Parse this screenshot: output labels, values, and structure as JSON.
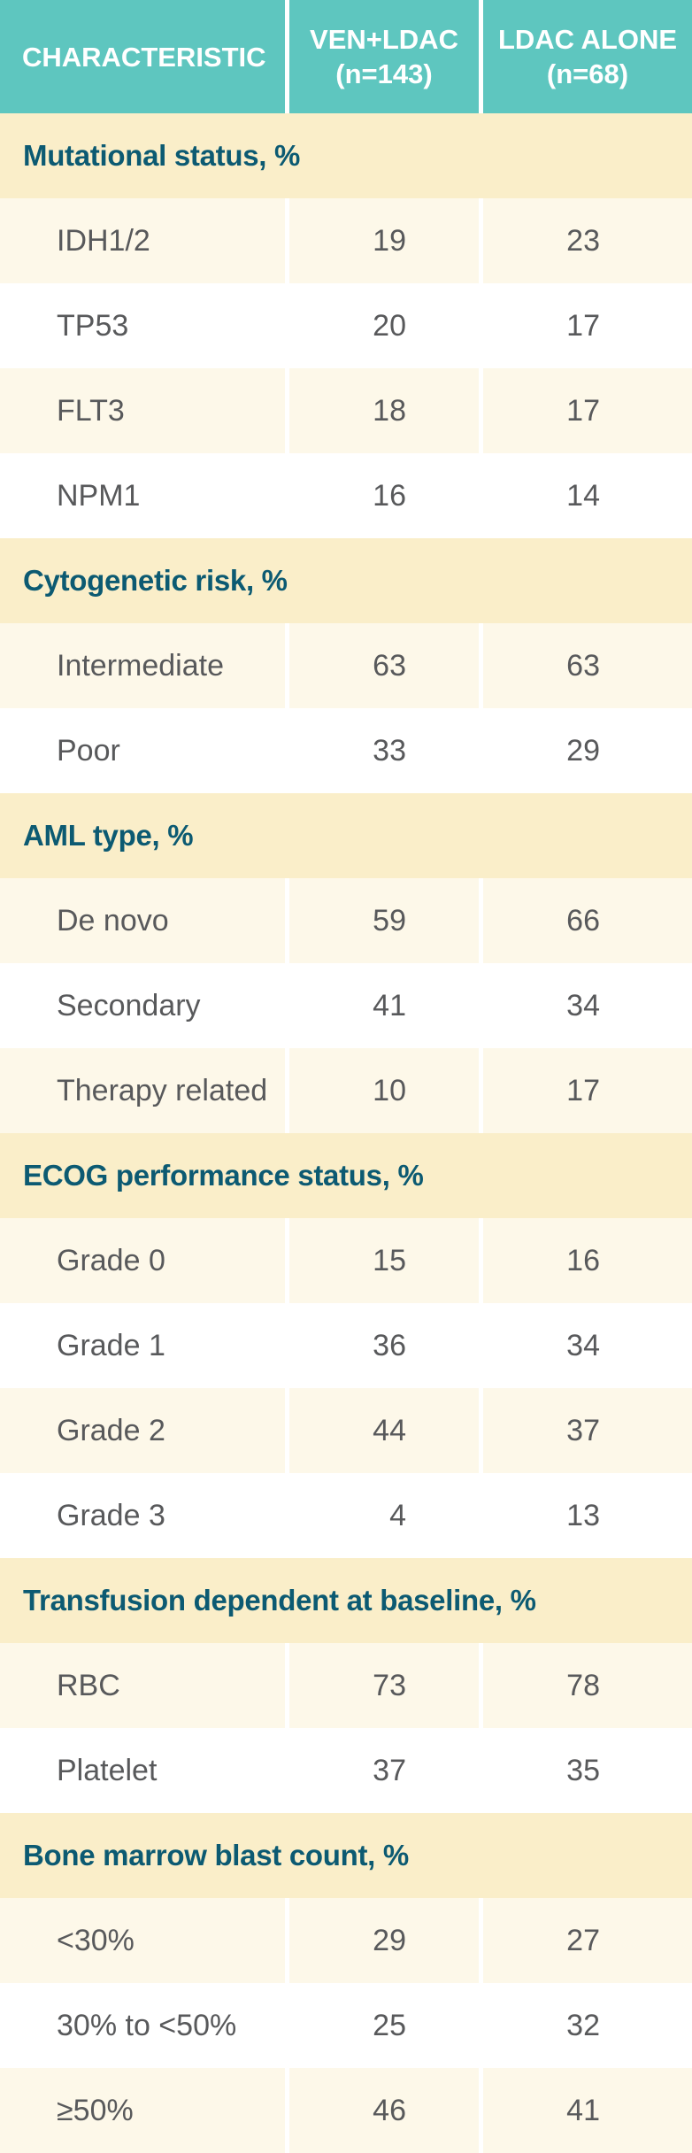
{
  "colors": {
    "header_bg": "#5ec6bf",
    "header_text": "#ffffff",
    "section_bg": "#faeec9",
    "section_text": "#0c5a72",
    "row_alt_bg": "#fdf8e9",
    "row_bg": "#ffffff",
    "body_text": "#58595b",
    "divider": "#ffffff"
  },
  "chart_data": {
    "type": "table",
    "columns": [
      {
        "title": "CHARACTERISTIC",
        "subtitle": ""
      },
      {
        "title": "VEN+LDAC",
        "subtitle": "(n=143)"
      },
      {
        "title": "LDAC ALONE",
        "subtitle": "(n=68)"
      }
    ],
    "sections": [
      {
        "header": "Mutational status, %",
        "rows": [
          {
            "label": "IDH1/2",
            "ven_ldac": 19,
            "ldac_alone": 23
          },
          {
            "label": "TP53",
            "ven_ldac": 20,
            "ldac_alone": 17
          },
          {
            "label": "FLT3",
            "ven_ldac": 18,
            "ldac_alone": 17
          },
          {
            "label": "NPM1",
            "ven_ldac": 16,
            "ldac_alone": 14
          }
        ]
      },
      {
        "header": "Cytogenetic risk, %",
        "rows": [
          {
            "label": "Intermediate",
            "ven_ldac": 63,
            "ldac_alone": 63
          },
          {
            "label": "Poor",
            "ven_ldac": 33,
            "ldac_alone": 29
          }
        ]
      },
      {
        "header": "AML type, %",
        "rows": [
          {
            "label": "De novo",
            "ven_ldac": 59,
            "ldac_alone": 66
          },
          {
            "label": "Secondary",
            "ven_ldac": 41,
            "ldac_alone": 34
          },
          {
            "label": "Therapy related",
            "ven_ldac": 10,
            "ldac_alone": 17
          }
        ]
      },
      {
        "header": "ECOG performance status, %",
        "rows": [
          {
            "label": "Grade 0",
            "ven_ldac": 15,
            "ldac_alone": 16
          },
          {
            "label": "Grade 1",
            "ven_ldac": 36,
            "ldac_alone": 34
          },
          {
            "label": "Grade 2",
            "ven_ldac": 44,
            "ldac_alone": 37
          },
          {
            "label": "Grade 3",
            "ven_ldac": 4,
            "ldac_alone": 13
          }
        ]
      },
      {
        "header": "Transfusion dependent at baseline, %",
        "rows": [
          {
            "label": "RBC",
            "ven_ldac": 73,
            "ldac_alone": 78
          },
          {
            "label": "Platelet",
            "ven_ldac": 37,
            "ldac_alone": 35
          }
        ]
      },
      {
        "header": "Bone marrow blast count, %",
        "rows": [
          {
            "label": "<30%",
            "ven_ldac": 29,
            "ldac_alone": 27
          },
          {
            "label": "30% to <50%",
            "ven_ldac": 25,
            "ldac_alone": 32
          },
          {
            "label": "≥50%",
            "ven_ldac": 46,
            "ldac_alone": 41
          }
        ]
      }
    ]
  }
}
